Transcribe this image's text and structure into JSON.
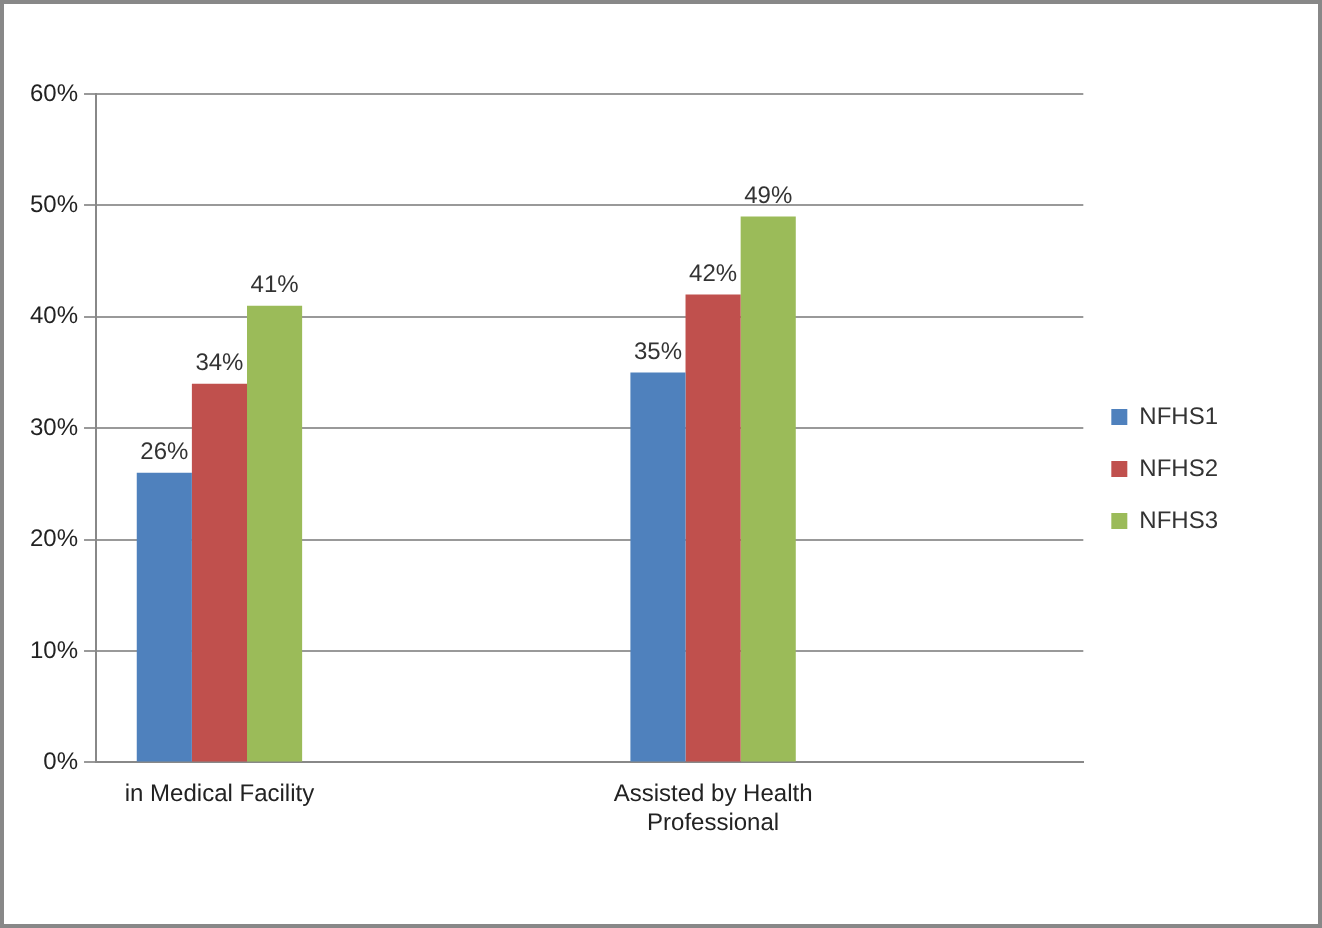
{
  "chart_data": {
    "type": "bar",
    "categories": [
      "in Medical Facility",
      null,
      "Assisted by Health Professional",
      null
    ],
    "series": [
      {
        "name": "NFHS1",
        "color": "#4f81bd",
        "values": [
          26,
          null,
          35,
          null
        ],
        "value_labels": [
          "26%",
          null,
          "35%",
          null
        ]
      },
      {
        "name": "NFHS2",
        "color": "#c0504d",
        "values": [
          34,
          null,
          42,
          null
        ],
        "value_labels": [
          "34%",
          null,
          "42%",
          null
        ]
      },
      {
        "name": "NFHS3",
        "color": "#9bbb59",
        "values": [
          41,
          null,
          49,
          null
        ],
        "value_labels": [
          "41%",
          null,
          "49%",
          null
        ]
      }
    ],
    "ylim": [
      0,
      60
    ],
    "yticks": [
      {
        "value": 0,
        "label": "0%"
      },
      {
        "value": 10,
        "label": "10%"
      },
      {
        "value": 20,
        "label": "20%"
      },
      {
        "value": 30,
        "label": "30%"
      },
      {
        "value": 40,
        "label": "40%"
      },
      {
        "value": 50,
        "label": "50%"
      },
      {
        "value": 60,
        "label": "60%"
      }
    ],
    "grid": "y",
    "legend": "right"
  }
}
